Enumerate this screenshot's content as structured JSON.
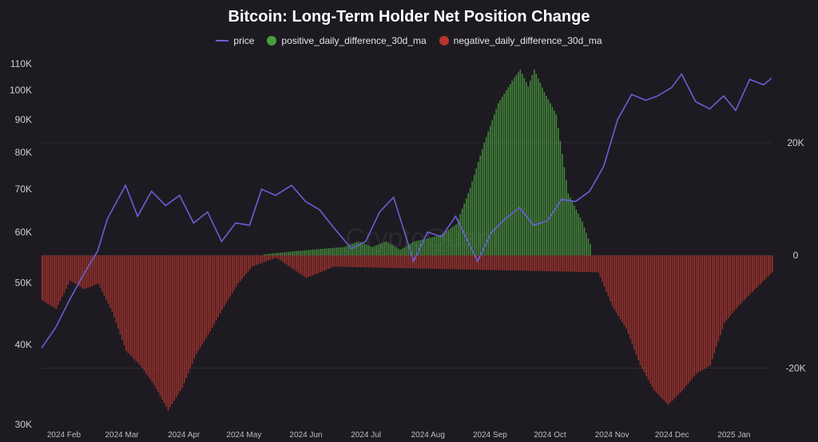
{
  "chart_data": {
    "type": "bar",
    "title": "Bitcoin: Long-Term Holder Net Position Change",
    "watermark": "CryptoQuant",
    "x_tick_labels": [
      "2024 Feb",
      "2024 Mar",
      "2024 Apr",
      "2024 May",
      "2024 Jun",
      "2024 Jul",
      "2024 Aug",
      "2024 Sep",
      "2024 Oct",
      "2024 Nov",
      "2024 Dec",
      "2025 Jan"
    ],
    "left_axis": {
      "scale": "log",
      "range": [
        30000,
        110000
      ],
      "ticks": [
        30000,
        40000,
        50000,
        60000,
        70000,
        80000,
        90000,
        100000,
        110000
      ],
      "tick_labels": [
        "30K",
        "40K",
        "50K",
        "60K",
        "70K",
        "80K",
        "90K",
        "100K",
        "110K"
      ]
    },
    "right_axis": {
      "scale": "linear",
      "range": [
        -30000,
        34000
      ],
      "ticks": [
        -20000,
        0,
        20000
      ],
      "tick_labels": [
        "-20K",
        "0",
        "20K"
      ]
    },
    "x_range": [
      "2024-02-01",
      "2025-01-31"
    ],
    "colors": {
      "price": "#6a5fd6",
      "positive": "#4a9d3e",
      "negative": "#b8352f",
      "background": "#1d1b21",
      "grid": "#2e2c33"
    },
    "series": [
      {
        "name": "price",
        "axis": "left",
        "type": "line",
        "points": [
          [
            "2024-02-01",
            39500
          ],
          [
            "2024-02-08",
            42500
          ],
          [
            "2024-02-15",
            47000
          ],
          [
            "2024-02-22",
            51500
          ],
          [
            "2024-02-29",
            56000
          ],
          [
            "2024-03-05",
            63000
          ],
          [
            "2024-03-14",
            71000
          ],
          [
            "2024-03-20",
            63500
          ],
          [
            "2024-03-27",
            69500
          ],
          [
            "2024-04-03",
            66000
          ],
          [
            "2024-04-10",
            68500
          ],
          [
            "2024-04-17",
            62000
          ],
          [
            "2024-04-24",
            64500
          ],
          [
            "2024-05-01",
            58000
          ],
          [
            "2024-05-08",
            62000
          ],
          [
            "2024-05-15",
            61500
          ],
          [
            "2024-05-21",
            70000
          ],
          [
            "2024-05-28",
            68500
          ],
          [
            "2024-06-05",
            71000
          ],
          [
            "2024-06-12",
            67000
          ],
          [
            "2024-06-19",
            65000
          ],
          [
            "2024-06-26",
            61000
          ],
          [
            "2024-07-05",
            56500
          ],
          [
            "2024-07-12",
            58000
          ],
          [
            "2024-07-19",
            64500
          ],
          [
            "2024-07-26",
            68000
          ],
          [
            "2024-08-05",
            54000
          ],
          [
            "2024-08-12",
            60000
          ],
          [
            "2024-08-19",
            59000
          ],
          [
            "2024-08-26",
            63500
          ],
          [
            "2024-09-06",
            54000
          ],
          [
            "2024-09-13",
            60000
          ],
          [
            "2024-09-20",
            63000
          ],
          [
            "2024-09-27",
            65500
          ],
          [
            "2024-10-04",
            61500
          ],
          [
            "2024-10-11",
            62500
          ],
          [
            "2024-10-18",
            67500
          ],
          [
            "2024-10-25",
            67000
          ],
          [
            "2024-11-01",
            69500
          ],
          [
            "2024-11-08",
            76000
          ],
          [
            "2024-11-15",
            90000
          ],
          [
            "2024-11-22",
            98500
          ],
          [
            "2024-11-29",
            96500
          ],
          [
            "2024-12-05",
            98000
          ],
          [
            "2024-12-12",
            101000
          ],
          [
            "2024-12-17",
            106000
          ],
          [
            "2024-12-24",
            96000
          ],
          [
            "2024-12-31",
            93500
          ],
          [
            "2025-01-07",
            98000
          ],
          [
            "2025-01-13",
            93000
          ],
          [
            "2025-01-20",
            104000
          ],
          [
            "2025-01-27",
            102000
          ],
          [
            "2025-01-31",
            104500
          ]
        ]
      },
      {
        "name": "positive_daily_difference_30d_ma",
        "axis": "right",
        "type": "bar",
        "points": [
          [
            "2024-05-22",
            200
          ],
          [
            "2024-06-05",
            700
          ],
          [
            "2024-07-01",
            1500
          ],
          [
            "2024-07-08",
            2500
          ],
          [
            "2024-07-15",
            1500
          ],
          [
            "2024-07-22",
            2500
          ],
          [
            "2024-07-29",
            1000
          ],
          [
            "2024-08-05",
            2500
          ],
          [
            "2024-08-12",
            3000
          ],
          [
            "2024-08-19",
            3800
          ],
          [
            "2024-08-26",
            5500
          ],
          [
            "2024-09-02",
            12000
          ],
          [
            "2024-09-09",
            20000
          ],
          [
            "2024-09-16",
            27000
          ],
          [
            "2024-09-23",
            31000
          ],
          [
            "2024-09-27",
            33000
          ],
          [
            "2024-10-01",
            30000
          ],
          [
            "2024-10-04",
            33000
          ],
          [
            "2024-10-09",
            29000
          ],
          [
            "2024-10-15",
            25000
          ],
          [
            "2024-10-21",
            11000
          ],
          [
            "2024-10-28",
            6000
          ],
          [
            "2024-11-01",
            2000
          ]
        ]
      },
      {
        "name": "negative_daily_difference_30d_ma",
        "axis": "right",
        "type": "bar",
        "points": [
          [
            "2024-02-01",
            -8000
          ],
          [
            "2024-02-08",
            -9500
          ],
          [
            "2024-02-15",
            -4500
          ],
          [
            "2024-02-22",
            -6000
          ],
          [
            "2024-02-29",
            -5000
          ],
          [
            "2024-03-07",
            -10000
          ],
          [
            "2024-03-14",
            -17000
          ],
          [
            "2024-03-21",
            -19500
          ],
          [
            "2024-03-28",
            -23000
          ],
          [
            "2024-04-04",
            -27500
          ],
          [
            "2024-04-11",
            -23500
          ],
          [
            "2024-04-18",
            -17500
          ],
          [
            "2024-04-25",
            -13500
          ],
          [
            "2024-05-02",
            -9000
          ],
          [
            "2024-05-09",
            -5000
          ],
          [
            "2024-05-16",
            -2000
          ],
          [
            "2024-05-28",
            -400
          ],
          [
            "2024-06-12",
            -4000
          ],
          [
            "2024-06-19",
            -3000
          ],
          [
            "2024-06-26",
            -2000
          ],
          [
            "2024-11-05",
            -3000
          ],
          [
            "2024-11-12",
            -9000
          ],
          [
            "2024-11-19",
            -13000
          ],
          [
            "2024-11-26",
            -19500
          ],
          [
            "2024-12-03",
            -24000
          ],
          [
            "2024-12-10",
            -26500
          ],
          [
            "2024-12-17",
            -24000
          ],
          [
            "2024-12-24",
            -21000
          ],
          [
            "2024-12-31",
            -19500
          ],
          [
            "2025-01-07",
            -12000
          ],
          [
            "2025-01-14",
            -9000
          ],
          [
            "2025-01-21",
            -6500
          ],
          [
            "2025-01-31",
            -3000
          ]
        ]
      }
    ]
  }
}
